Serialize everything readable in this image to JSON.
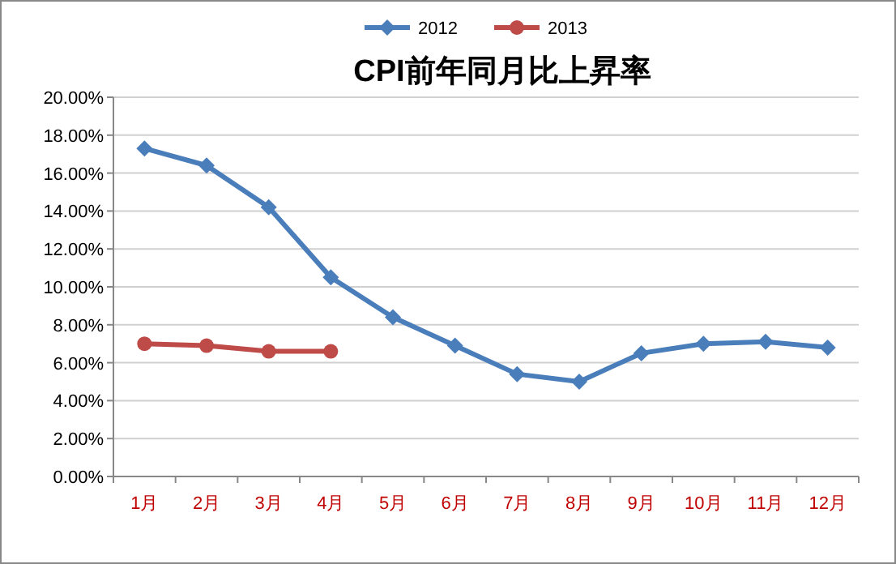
{
  "chart_data": {
    "type": "line",
    "title": "CPI前年同月比上昇率",
    "categories": [
      "1月",
      "2月",
      "3月",
      "4月",
      "5月",
      "6月",
      "7月",
      "8月",
      "9月",
      "10月",
      "11月",
      "12月"
    ],
    "series": [
      {
        "name": "2012",
        "color": "#4a7ebb",
        "marker": "diamond",
        "values": [
          17.3,
          16.4,
          14.2,
          10.5,
          8.4,
          6.9,
          5.4,
          5.0,
          6.5,
          7.0,
          7.1,
          6.8
        ]
      },
      {
        "name": "2013",
        "color": "#be4b48",
        "marker": "circle",
        "values": [
          7.0,
          6.9,
          6.6,
          6.6,
          null,
          null,
          null,
          null,
          null,
          null,
          null,
          null
        ]
      }
    ],
    "ylim": [
      0,
      20
    ],
    "yticks": [
      {
        "value": 0,
        "label": "0.00%"
      },
      {
        "value": 2,
        "label": "2.00%"
      },
      {
        "value": 4,
        "label": "4.00%"
      },
      {
        "value": 6,
        "label": "6.00%"
      },
      {
        "value": 8,
        "label": "8.00%"
      },
      {
        "value": 10,
        "label": "10.00%"
      },
      {
        "value": 12,
        "label": "12.00%"
      },
      {
        "value": 14,
        "label": "14.00%"
      },
      {
        "value": 16,
        "label": "16.00%"
      },
      {
        "value": 18,
        "label": "18.00%"
      },
      {
        "value": 20,
        "label": "20.00%"
      }
    ],
    "grid": "y",
    "legend": "top"
  }
}
